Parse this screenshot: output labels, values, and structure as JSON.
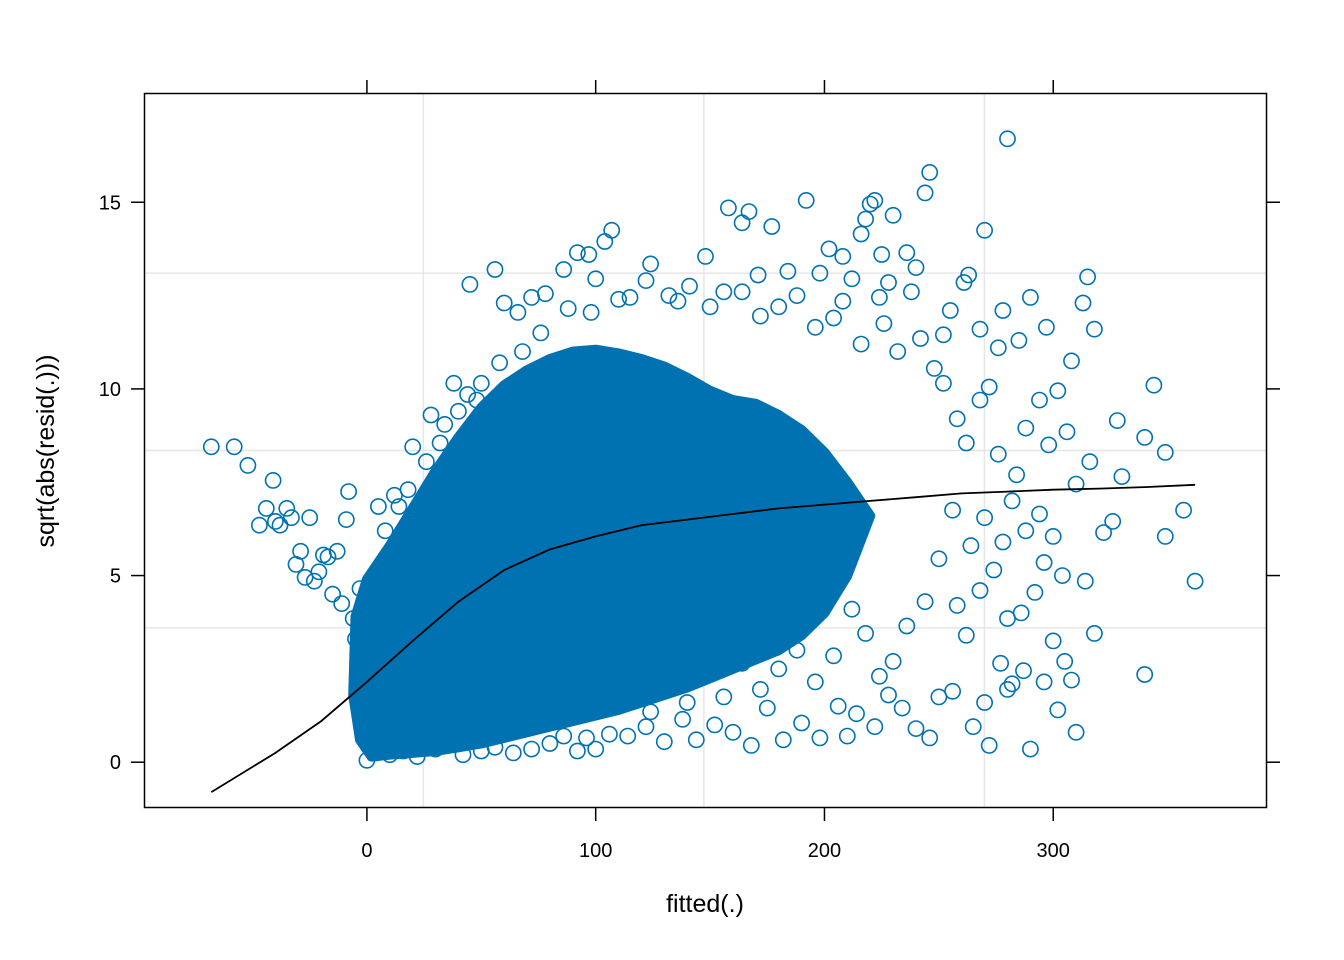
{
  "chart_data": {
    "type": "scatter",
    "title": "",
    "xlabel": "fitted(.)",
    "ylabel": "sqrt(abs(resid(.)))",
    "xlim": [
      -97,
      393
    ],
    "ylim": [
      -1.2,
      17.9
    ],
    "x_ticks": [
      0,
      100,
      200,
      300
    ],
    "y_ticks": [
      0,
      5,
      10,
      15
    ],
    "x_tick_labels": [
      "0",
      "100",
      "200",
      "300"
    ],
    "y_tick_labels": [
      "0",
      "5",
      "10",
      "15"
    ],
    "x_gridlines": [
      24.7,
      147.3,
      269.9
    ],
    "y_gridlines": [
      3.6,
      8.35,
      13.1
    ],
    "grid": true,
    "point_color": "#0072B2",
    "line_color": "#000000",
    "point_style": "open-circle",
    "series": [
      {
        "values": [
          [
            -68,
            8.45
          ],
          [
            -58,
            8.45
          ],
          [
            -52,
            7.95
          ],
          [
            -47,
            6.35
          ],
          [
            -44,
            6.8
          ],
          [
            -41,
            7.55
          ],
          [
            -40,
            6.45
          ],
          [
            -38,
            6.35
          ],
          [
            -35,
            6.8
          ],
          [
            -33,
            6.55
          ],
          [
            -31,
            5.3
          ],
          [
            -29,
            5.65
          ],
          [
            -27,
            4.95
          ],
          [
            -25,
            6.55
          ],
          [
            -23,
            4.85
          ],
          [
            -21,
            5.1
          ],
          [
            -19,
            5.55
          ],
          [
            -17,
            5.5
          ],
          [
            -15,
            4.5
          ],
          [
            -13,
            5.65
          ],
          [
            -11,
            4.25
          ],
          [
            -9,
            6.5
          ],
          [
            -8,
            7.25
          ],
          [
            -6,
            3.85
          ],
          [
            -5,
            3.3
          ],
          [
            -3,
            4.65
          ],
          [
            -2,
            2.5
          ],
          [
            5,
            6.85
          ],
          [
            8,
            6.2
          ],
          [
            12,
            7.15
          ],
          [
            20,
            8.45
          ],
          [
            28,
            9.3
          ],
          [
            34,
            9.05
          ],
          [
            38,
            10.15
          ],
          [
            45,
            12.8
          ],
          [
            48,
            9.7
          ],
          [
            56,
            13.2
          ],
          [
            60,
            12.3
          ],
          [
            66,
            12.05
          ],
          [
            72,
            12.45
          ],
          [
            78,
            12.55
          ],
          [
            86,
            13.2
          ],
          [
            92,
            13.65
          ],
          [
            97,
            13.6
          ],
          [
            100,
            12.95
          ],
          [
            104,
            13.95
          ],
          [
            107,
            14.25
          ],
          [
            115,
            12.45
          ],
          [
            124,
            13.35
          ],
          [
            132,
            12.5
          ],
          [
            141,
            12.75
          ],
          [
            148,
            13.55
          ],
          [
            156,
            12.6
          ],
          [
            158,
            14.85
          ],
          [
            164,
            14.45
          ],
          [
            167,
            14.75
          ],
          [
            171,
            13.05
          ],
          [
            177,
            14.35
          ],
          [
            184,
            13.15
          ],
          [
            192,
            15.05
          ],
          [
            198,
            13.1
          ],
          [
            202,
            13.75
          ],
          [
            208,
            13.55
          ],
          [
            212,
            12.95
          ],
          [
            216,
            14.15
          ],
          [
            218,
            14.55
          ],
          [
            220,
            14.95
          ],
          [
            222,
            15.05
          ],
          [
            225,
            13.6
          ],
          [
            228,
            12.85
          ],
          [
            230,
            14.65
          ],
          [
            236,
            13.65
          ],
          [
            240,
            13.25
          ],
          [
            244,
            15.25
          ],
          [
            246,
            15.8
          ],
          [
            252,
            11.45
          ],
          [
            255,
            12.1
          ],
          [
            261,
            12.85
          ],
          [
            263,
            13.05
          ],
          [
            268,
            11.6
          ],
          [
            270,
            14.25
          ],
          [
            276,
            11.1
          ],
          [
            278,
            12.1
          ],
          [
            280,
            16.7
          ],
          [
            285,
            11.3
          ],
          [
            290,
            12.45
          ],
          [
            297,
            11.65
          ],
          [
            302,
            9.95
          ],
          [
            308,
            10.75
          ],
          [
            313,
            12.3
          ],
          [
            315,
            13.0
          ],
          [
            318,
            11.6
          ],
          [
            328,
            9.15
          ],
          [
            340,
            8.7
          ],
          [
            344,
            10.1
          ],
          [
            349,
            8.3
          ],
          [
            349,
            6.05
          ],
          [
            357,
            6.75
          ],
          [
            362,
            4.85
          ],
          [
            340,
            2.35
          ],
          [
            330,
            7.65
          ],
          [
            326,
            6.45
          ],
          [
            322,
            6.15
          ],
          [
            318,
            3.45
          ],
          [
            314,
            4.85
          ],
          [
            310,
            0.8
          ],
          [
            308,
            2.2
          ],
          [
            305,
            2.7
          ],
          [
            302,
            1.4
          ],
          [
            300,
            3.25
          ],
          [
            296,
            2.15
          ],
          [
            290,
            0.35
          ],
          [
            287,
            2.45
          ],
          [
            282,
            2.1
          ],
          [
            280,
            1.95
          ],
          [
            277,
            2.65
          ],
          [
            272,
            0.45
          ],
          [
            270,
            1.6
          ],
          [
            265,
            0.95
          ],
          [
            256,
            1.9
          ],
          [
            250,
            1.75
          ],
          [
            246,
            0.65
          ],
          [
            240,
            0.9
          ],
          [
            234,
            1.45
          ],
          [
            228,
            1.8
          ],
          [
            222,
            0.95
          ],
          [
            214,
            1.3
          ],
          [
            210,
            0.7
          ],
          [
            206,
            1.5
          ],
          [
            198,
            0.65
          ],
          [
            190,
            1.05
          ],
          [
            182,
            0.6
          ],
          [
            175,
            1.45
          ],
          [
            168,
            0.45
          ],
          [
            160,
            0.8
          ],
          [
            152,
            1.0
          ],
          [
            144,
            0.6
          ],
          [
            138,
            1.15
          ],
          [
            130,
            0.55
          ],
          [
            122,
            0.95
          ],
          [
            114,
            0.7
          ],
          [
            106,
            0.75
          ],
          [
            100,
            0.35
          ],
          [
            96,
            0.65
          ],
          [
            92,
            0.3
          ],
          [
            86,
            0.7
          ],
          [
            80,
            0.5
          ],
          [
            72,
            0.35
          ],
          [
            64,
            0.25
          ],
          [
            56,
            0.4
          ],
          [
            50,
            0.3
          ],
          [
            42,
            0.2
          ],
          [
            36,
            0.55
          ],
          [
            30,
            0.35
          ],
          [
            22,
            0.15
          ],
          [
            16,
            0.3
          ],
          [
            10,
            0.2
          ],
          [
            4,
            0.25
          ],
          [
            0,
            0.05
          ],
          [
            310,
            7.45
          ],
          [
            316,
            8.05
          ],
          [
            306,
            8.85
          ],
          [
            298,
            8.5
          ],
          [
            294,
            9.7
          ],
          [
            288,
            8.95
          ],
          [
            284,
            7.7
          ],
          [
            276,
            8.25
          ],
          [
            272,
            10.05
          ],
          [
            268,
            9.7
          ],
          [
            262,
            8.55
          ],
          [
            258,
            9.2
          ],
          [
            252,
            10.15
          ],
          [
            248,
            10.55
          ],
          [
            242,
            11.35
          ],
          [
            238,
            12.6
          ],
          [
            232,
            11.0
          ],
          [
            226,
            11.75
          ],
          [
            224,
            12.45
          ],
          [
            216,
            11.2
          ],
          [
            208,
            12.35
          ],
          [
            204,
            11.9
          ],
          [
            196,
            11.65
          ],
          [
            188,
            12.5
          ],
          [
            180,
            12.2
          ],
          [
            172,
            11.95
          ],
          [
            164,
            12.6
          ],
          [
            150,
            12.2
          ],
          [
            136,
            12.35
          ],
          [
            122,
            12.9
          ],
          [
            110,
            12.4
          ],
          [
            98,
            12.05
          ],
          [
            88,
            12.15
          ],
          [
            76,
            11.5
          ],
          [
            68,
            11.0
          ],
          [
            58,
            10.7
          ],
          [
            50,
            10.15
          ],
          [
            44,
            9.85
          ],
          [
            40,
            9.4
          ],
          [
            32,
            8.55
          ],
          [
            26,
            8.05
          ],
          [
            18,
            7.3
          ],
          [
            14,
            6.85
          ],
          [
            296,
            5.35
          ],
          [
            300,
            6.05
          ],
          [
            304,
            5.0
          ],
          [
            292,
            4.55
          ],
          [
            286,
            4.0
          ],
          [
            280,
            3.85
          ],
          [
            274,
            5.15
          ],
          [
            268,
            4.6
          ],
          [
            262,
            3.4
          ],
          [
            258,
            4.2
          ],
          [
            264,
            5.8
          ],
          [
            278,
            5.9
          ],
          [
            288,
            6.2
          ],
          [
            294,
            6.65
          ],
          [
            282,
            7.0
          ],
          [
            270,
            6.55
          ],
          [
            256,
            6.75
          ],
          [
            250,
            5.45
          ],
          [
            244,
            4.3
          ],
          [
            236,
            3.65
          ],
          [
            230,
            2.7
          ],
          [
            224,
            2.3
          ],
          [
            218,
            3.45
          ],
          [
            212,
            4.1
          ],
          [
            204,
            2.85
          ],
          [
            196,
            2.15
          ],
          [
            188,
            3.0
          ],
          [
            180,
            2.5
          ],
          [
            172,
            1.95
          ],
          [
            164,
            2.65
          ],
          [
            156,
            1.75
          ],
          [
            148,
            2.4
          ],
          [
            140,
            1.6
          ],
          [
            132,
            2.05
          ],
          [
            124,
            1.35
          ],
          [
            116,
            1.85
          ]
        ]
      }
    ],
    "smooth_line": {
      "x": [
        -68,
        -40,
        -20,
        0,
        20,
        40,
        60,
        80,
        100,
        120,
        140,
        160,
        180,
        200,
        220,
        240,
        260,
        280,
        300,
        320,
        340,
        362
      ],
      "y": [
        -0.8,
        0.25,
        1.1,
        2.15,
        3.25,
        4.3,
        5.15,
        5.7,
        6.05,
        6.35,
        6.5,
        6.65,
        6.8,
        6.9,
        7.0,
        7.1,
        7.2,
        7.25,
        7.3,
        7.33,
        7.37,
        7.43
      ]
    }
  }
}
